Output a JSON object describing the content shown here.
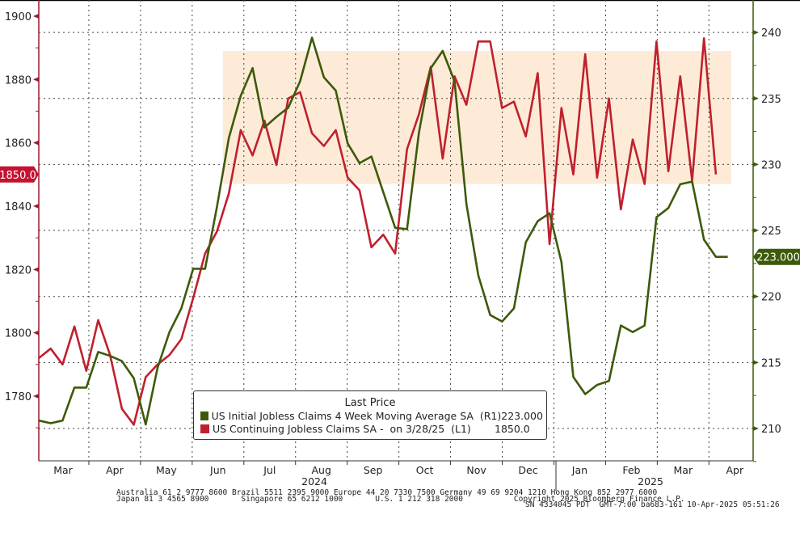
{
  "chart_data": {
    "type": "line",
    "title": "",
    "legend": {
      "title": "Last Price",
      "placement": "bottom-center",
      "entries": [
        {
          "label": "US Initial Jobless Claims 4 Week Moving Average SA  (R1)",
          "value": "223.000",
          "color": "#3d5a0a"
        },
        {
          "label": "US Continuing Jobless Claims SA -  on 3/28/25  (L1)",
          "value": "1850.0",
          "color": "#c0202e"
        }
      ]
    },
    "x_axis": {
      "unit": "week index (weekly, Feb 2024 - Apr 2025)",
      "month_labels": [
        "Mar",
        "Apr",
        "May",
        "Jun",
        "Jul",
        "Aug",
        "Sep",
        "Oct",
        "Nov",
        "Dec",
        "Jan",
        "Feb",
        "Mar",
        "Apr"
      ],
      "year_labels": [
        "2024",
        "2025"
      ]
    },
    "left_axis": {
      "series": "US Continuing Jobless Claims SA (thousands)",
      "ylim": [
        1765,
        1905
      ],
      "ticks": [
        1780,
        1800,
        1820,
        1840,
        1860,
        1880,
        1900
      ],
      "last_value_tag": "1850.0"
    },
    "right_axis": {
      "series": "US Initial Jobless Claims 4 Week Moving Average SA (thousands)",
      "ylim": [
        207.5,
        241.5
      ],
      "ticks": [
        210,
        215,
        220,
        225,
        230,
        235,
        240
      ],
      "last_value_tag": "223.000"
    },
    "highlight_band": {
      "x_range_weeks": [
        15.5,
        58.3
      ],
      "left_axis_range": [
        1847,
        1889
      ],
      "color": "#fdebd7"
    },
    "grid": true,
    "series": [
      {
        "name": "US Continuing Jobless Claims SA",
        "axis": "left",
        "color": "#c0202e",
        "values": [
          1792,
          1795,
          1790,
          1802,
          1788,
          1804,
          1793,
          1776,
          1771,
          1786,
          1790,
          1793,
          1798,
          1811,
          1825,
          1832,
          1844,
          1864,
          1856,
          1867,
          1853,
          1874,
          1876,
          1863,
          1859,
          1864,
          1849,
          1845,
          1827,
          1831,
          1825,
          1858,
          1869,
          1884,
          1855,
          1881,
          1872,
          1892,
          1892,
          1871,
          1873,
          1862,
          1882,
          1828,
          1871,
          1850,
          1888,
          1849,
          1874,
          1839,
          1861,
          1847,
          1892,
          1851,
          1881,
          1848,
          1893,
          1850
        ]
      },
      {
        "name": "US Initial Jobless Claims 4 Week Moving Average SA",
        "axis": "right",
        "color": "#3d5a0a",
        "values": [
          210.6,
          210.4,
          210.6,
          213.1,
          213.1,
          215.8,
          215.5,
          215.1,
          213.8,
          210.3,
          214.6,
          217.3,
          219.1,
          222.1,
          222.1,
          226.8,
          232.0,
          235.2,
          237.3,
          232.8,
          233.6,
          234.3,
          236.3,
          239.6,
          236.6,
          235.6,
          231.6,
          230.1,
          230.6,
          227.9,
          225.2,
          225.1,
          232.4,
          237.3,
          238.6,
          236.3,
          227.0,
          221.6,
          218.6,
          218.1,
          219.1,
          224.1,
          225.7,
          226.3,
          222.6,
          213.9,
          212.6,
          213.3,
          213.6,
          217.8,
          217.3,
          217.8,
          226.0,
          226.7,
          228.5,
          228.7,
          224.3,
          223.0,
          223.0
        ]
      }
    ]
  },
  "footer": {
    "line1": "Australia 61 2 9777 8600 Brazil 5511 2395 9000 Europe 44 20 7330 7500 Germany 49 69 9204 1210 Hong Kong 852 2977 6000",
    "line2": "Japan 81 3 4565 8900       Singapore 65 6212 1000       U.S. 1 212 318 2000           Copyright 2025 Bloomberg Finance L.P.",
    "line3": "SN 4334045 PDT  GMT-7:00 ba683-161 10-Apr-2025 05:51:26"
  }
}
